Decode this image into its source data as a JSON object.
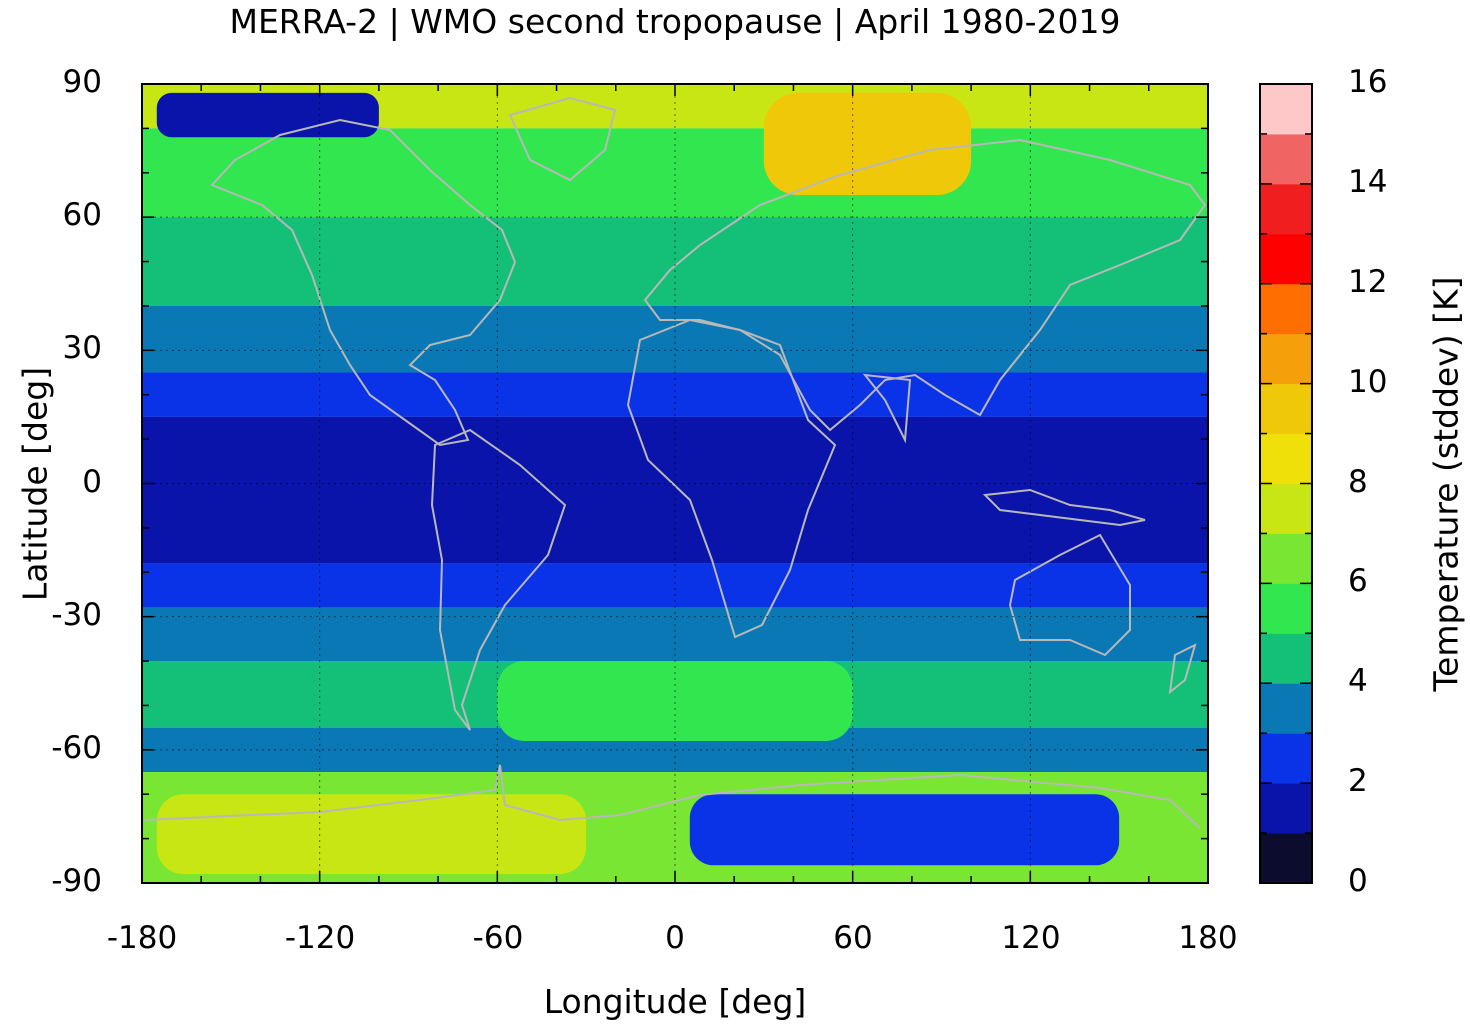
{
  "chart_data": {
    "type": "heatmap",
    "title": "MERRA-2 | WMO second tropopause | April 1980-2019",
    "xlabel": "Longitude [deg]",
    "ylabel": "Latitude [deg]",
    "xlim": [
      -180,
      180
    ],
    "ylim": [
      -90,
      90
    ],
    "xticks": [
      "-180",
      "-120",
      "-60",
      "0",
      "60",
      "120",
      "180"
    ],
    "yticks": [
      "90",
      "60",
      "30",
      "0",
      "-30",
      "-60",
      "-90"
    ],
    "grid": true,
    "colorbar": {
      "label": "Temperature (stddev) [K]",
      "range": [
        0,
        16
      ],
      "ticks": [
        "0",
        "2",
        "4",
        "6",
        "8",
        "10",
        "12",
        "14",
        "16"
      ],
      "colors": [
        "#0c0c2e",
        "#0a14aa",
        "#0a32e6",
        "#0a78b4",
        "#14c078",
        "#32e650",
        "#78e632",
        "#c8e614",
        "#f0e00a",
        "#f0c80a",
        "#f5a00a",
        "#ff6e00",
        "#ff0000",
        "#f01e1e",
        "#f06464",
        "#ffc8c8"
      ]
    },
    "zonal_mean_level_bins": [
      {
        "lat": [
          80,
          90
        ],
        "level": 7
      },
      {
        "lat": [
          60,
          80
        ],
        "level": 5
      },
      {
        "lat": [
          40,
          60
        ],
        "level": 4
      },
      {
        "lat": [
          25,
          40
        ],
        "level": 3
      },
      {
        "lat": [
          15,
          25
        ],
        "level": 2
      },
      {
        "lat": [
          -18,
          15
        ],
        "level": 1
      },
      {
        "lat": [
          -28,
          -18
        ],
        "level": 2
      },
      {
        "lat": [
          -40,
          -28
        ],
        "level": 3
      },
      {
        "lat": [
          -55,
          -40
        ],
        "level": 4
      },
      {
        "lat": [
          -65,
          -55
        ],
        "level": 3
      },
      {
        "lat": [
          -90,
          -65
        ],
        "level": 6
      }
    ],
    "regional_patches": [
      {
        "lon": [
          30,
          100
        ],
        "lat": [
          65,
          88
        ],
        "level": 9
      },
      {
        "lon": [
          -175,
          -100
        ],
        "lat": [
          78,
          88
        ],
        "level": 1
      },
      {
        "lon": [
          -60,
          60
        ],
        "lat": [
          -58,
          -40
        ],
        "level": 5
      },
      {
        "lon": [
          -175,
          -30
        ],
        "lat": [
          -88,
          -70
        ],
        "level": 7
      },
      {
        "lon": [
          5,
          150
        ],
        "lat": [
          -86,
          -70
        ],
        "level": 2
      }
    ]
  }
}
